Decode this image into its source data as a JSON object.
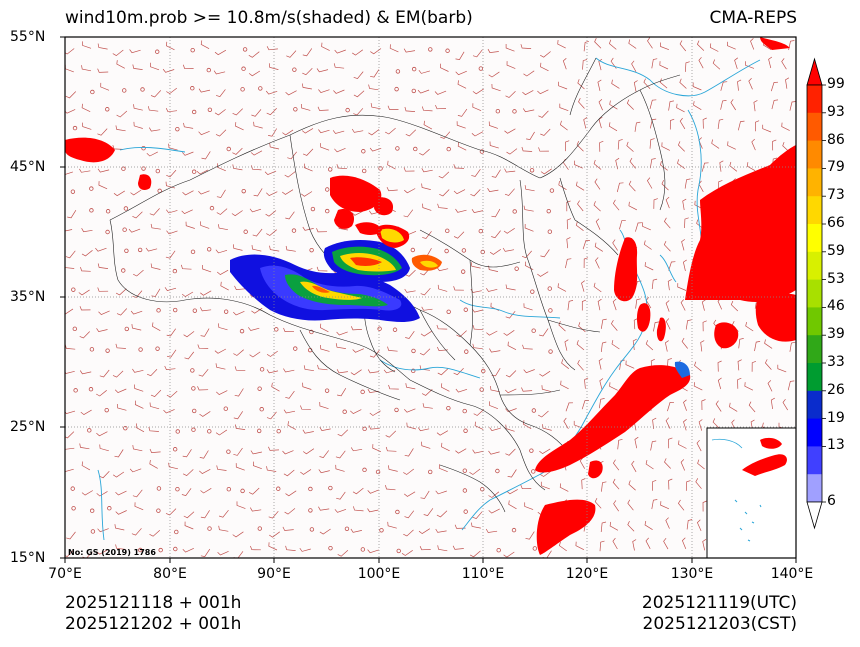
{
  "header": {
    "title": "wind10m.prob >= 10.8m/s(shaded) & EM(barb)",
    "model": "CMA-REPS"
  },
  "axes": {
    "lat_labels": [
      "55°N",
      "45°N",
      "35°N",
      "25°N",
      "15°N"
    ],
    "lon_labels": [
      "70°E",
      "80°E",
      "90°E",
      "100°E",
      "110°E",
      "120°E",
      "130°E",
      "140°E"
    ],
    "lon_range": [
      70,
      140
    ],
    "lat_range": [
      15,
      55
    ]
  },
  "map_credit": "No: GS (2019) 1786",
  "colorbar": {
    "ticks": [
      "99",
      "93",
      "86",
      "79",
      "73",
      "66",
      "59",
      "53",
      "46",
      "39",
      "33",
      "26",
      "19",
      "13",
      "6"
    ],
    "colors": [
      "#ff0000",
      "#ff2200",
      "#ff5a00",
      "#ff8a00",
      "#ffb300",
      "#ffd800",
      "#ffff00",
      "#d8f000",
      "#a8e000",
      "#70c800",
      "#30a818",
      "#009c30",
      "#0a2ccc",
      "#0000ff",
      "#4040ff",
      "#a0a0ff"
    ]
  },
  "footer": {
    "init_utc": "2025121118  +  001h",
    "init_cst": "2025121202  +  001h",
    "valid_utc": "2025121119(UTC)",
    "valid_cst": "2025121203(CST)"
  }
}
